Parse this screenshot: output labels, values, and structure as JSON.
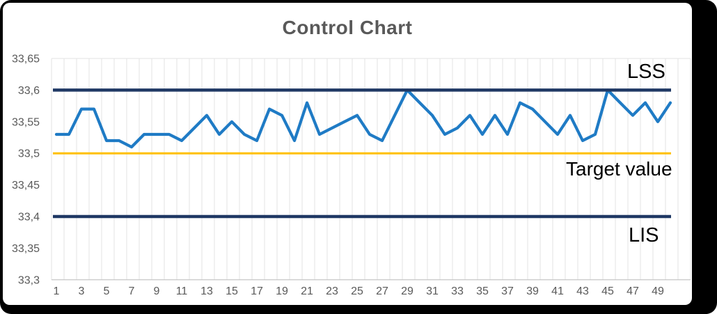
{
  "chart_data": {
    "type": "line",
    "title": "Control Chart",
    "n_points": 50,
    "xlim": [
      1,
      50
    ],
    "ylim": [
      33.3,
      33.65
    ],
    "grid": "vertical",
    "legend": "none",
    "decimal_separator": ",",
    "x_tick_labels": [
      "1",
      "3",
      "5",
      "7",
      "9",
      "11",
      "13",
      "15",
      "17",
      "19",
      "21",
      "23",
      "25",
      "27",
      "29",
      "31",
      "33",
      "35",
      "37",
      "39",
      "41",
      "43",
      "45",
      "47",
      "49"
    ],
    "y_ticks": [
      {
        "value": 33.65,
        "label": "33,65"
      },
      {
        "value": 33.6,
        "label": "33,6"
      },
      {
        "value": 33.55,
        "label": "33,55"
      },
      {
        "value": 33.5,
        "label": "33,5"
      },
      {
        "value": 33.45,
        "label": "33,45"
      },
      {
        "value": 33.4,
        "label": "33,4"
      },
      {
        "value": 33.35,
        "label": "33,35"
      },
      {
        "value": 33.3,
        "label": "33,3"
      }
    ],
    "series": [
      {
        "color": "#1F7BC5",
        "values": [
          33.53,
          33.53,
          33.57,
          33.57,
          33.52,
          33.52,
          33.51,
          33.53,
          33.53,
          33.53,
          33.52,
          33.54,
          33.56,
          33.53,
          33.55,
          33.53,
          33.52,
          33.57,
          33.56,
          33.52,
          33.58,
          33.53,
          33.54,
          33.55,
          33.56,
          33.53,
          33.52,
          33.56,
          33.6,
          33.58,
          33.56,
          33.53,
          33.54,
          33.56,
          33.53,
          33.56,
          33.53,
          33.58,
          33.57,
          33.55,
          33.53,
          33.56,
          33.52,
          33.53,
          33.6,
          33.58,
          33.56,
          33.58,
          33.55,
          33.58
        ]
      }
    ],
    "control_lines": [
      {
        "name": "LSS",
        "label": "LSS",
        "value": 33.6,
        "color": "#1F3864"
      },
      {
        "name": "Target",
        "label": "Target value",
        "value": 33.5,
        "color": "#FFC000"
      },
      {
        "name": "LIS",
        "label": "LIS",
        "value": 33.4,
        "color": "#1F3864"
      }
    ]
  },
  "colors": {
    "frame": "#000000",
    "background": "#FFFFFF",
    "gridline": "#E3E3E3",
    "axis_line": "#BFBFBF",
    "tick_text": "#595959",
    "title_text": "#595959",
    "annotation_text": "#000000"
  }
}
